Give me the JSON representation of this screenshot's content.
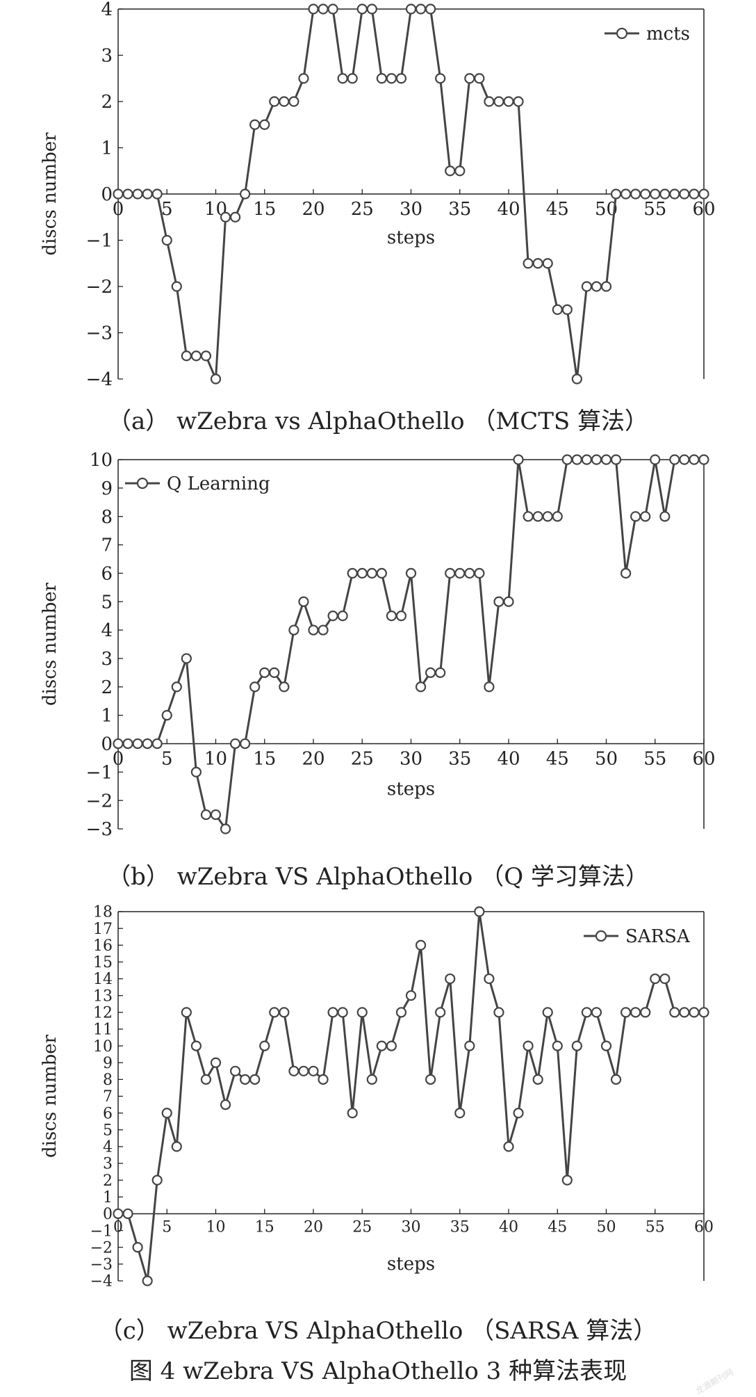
{
  "figure_caption": "图 4    wZebra  VS  AlphaOthello  3 种算法表现",
  "watermark": "龙源期刊网",
  "chart_data": [
    {
      "type": "line",
      "panel_caption": "（a） wZebra  vs  AlphaOthello （MCTS 算法）",
      "xlabel": "steps",
      "ylabel": "discs number",
      "xlim": [
        0,
        60
      ],
      "ylim": [
        -4,
        4
      ],
      "xticks": [
        0,
        5,
        10,
        15,
        20,
        25,
        30,
        35,
        40,
        45,
        50,
        55,
        60
      ],
      "yticks": [
        -4,
        -3,
        -2,
        -1,
        0,
        1,
        2,
        3,
        4
      ],
      "legend_position": "top-right",
      "series": [
        {
          "name": "mcts",
          "x": [
            0,
            1,
            2,
            3,
            4,
            5,
            6,
            7,
            8,
            9,
            10,
            11,
            12,
            13,
            14,
            15,
            16,
            17,
            18,
            19,
            20,
            21,
            22,
            23,
            24,
            25,
            26,
            27,
            28,
            29,
            30,
            31,
            32,
            33,
            34,
            35,
            36,
            37,
            38,
            39,
            40,
            41,
            42,
            43,
            44,
            45,
            46,
            47,
            48,
            49,
            50,
            51,
            52,
            53,
            54,
            55,
            56,
            57,
            58,
            59,
            60
          ],
          "y": [
            0,
            0,
            0,
            0,
            0,
            -1,
            -2,
            -3.5,
            -3.5,
            -3.5,
            -4,
            -0.5,
            -0.5,
            0,
            1.5,
            1.5,
            2,
            2,
            2,
            2.5,
            4,
            4,
            4,
            2.5,
            2.5,
            4,
            4,
            2.5,
            2.5,
            2.5,
            4,
            4,
            4,
            2.5,
            0.5,
            0.5,
            2.5,
            2.5,
            2,
            2,
            2,
            2,
            -1.5,
            -1.5,
            -1.5,
            -2.5,
            -2.5,
            -4,
            -2,
            -2,
            -2,
            0,
            0,
            0,
            0,
            0,
            0,
            0,
            0,
            0,
            0
          ]
        }
      ]
    },
    {
      "type": "line",
      "panel_caption": "（b） wZebra  VS  AlphaOthello （Q 学习算法）",
      "xlabel": "steps",
      "ylabel": "discs number",
      "xlim": [
        0,
        60
      ],
      "ylim": [
        -3,
        10
      ],
      "xticks": [
        0,
        5,
        10,
        15,
        20,
        25,
        30,
        35,
        40,
        45,
        50,
        55,
        60
      ],
      "yticks": [
        -3,
        -2,
        -1,
        0,
        1,
        2,
        3,
        4,
        5,
        6,
        7,
        8,
        9,
        10
      ],
      "legend_position": "top-left",
      "series": [
        {
          "name": "Q Learning",
          "x": [
            0,
            1,
            2,
            3,
            4,
            5,
            6,
            7,
            8,
            9,
            10,
            11,
            12,
            13,
            14,
            15,
            16,
            17,
            18,
            19,
            20,
            21,
            22,
            23,
            24,
            25,
            26,
            27,
            28,
            29,
            30,
            31,
            32,
            33,
            34,
            35,
            36,
            37,
            38,
            39,
            40,
            41,
            42,
            43,
            44,
            45,
            46,
            47,
            48,
            49,
            50,
            51,
            52,
            53,
            54,
            55,
            56,
            57,
            58,
            59,
            60
          ],
          "y": [
            0,
            0,
            0,
            0,
            0,
            1,
            2,
            3,
            -1,
            -2.5,
            -2.5,
            -3,
            0,
            0,
            2,
            2.5,
            2.5,
            2,
            4,
            5,
            4,
            4,
            4.5,
            4.5,
            6,
            6,
            6,
            6,
            4.5,
            4.5,
            6,
            2,
            2.5,
            2.5,
            6,
            6,
            6,
            6,
            2,
            5,
            5,
            10,
            8,
            8,
            8,
            8,
            10,
            10,
            10,
            10,
            10,
            10,
            6,
            8,
            8,
            10,
            8,
            10,
            10,
            10,
            10
          ]
        }
      ]
    },
    {
      "type": "line",
      "panel_caption": "（c） wZebra  VS  AlphaOthello （SARSA 算法）",
      "xlabel": "steps",
      "ylabel": "discs number",
      "xlim": [
        0,
        60
      ],
      "ylim": [
        -4,
        18
      ],
      "xticks": [
        0,
        5,
        10,
        15,
        20,
        25,
        30,
        35,
        40,
        45,
        50,
        55,
        60
      ],
      "yticks": [
        -4,
        -3,
        -2,
        -1,
        0,
        1,
        2,
        3,
        4,
        5,
        6,
        7,
        8,
        9,
        10,
        11,
        12,
        13,
        14,
        15,
        16,
        17,
        18
      ],
      "legend_position": "top-right",
      "series": [
        {
          "name": "SARSA",
          "x": [
            0,
            1,
            2,
            3,
            4,
            5,
            6,
            7,
            8,
            9,
            10,
            11,
            12,
            13,
            14,
            15,
            16,
            17,
            18,
            19,
            20,
            21,
            22,
            23,
            24,
            25,
            26,
            27,
            28,
            29,
            30,
            31,
            32,
            33,
            34,
            35,
            36,
            37,
            38,
            39,
            40,
            41,
            42,
            43,
            44,
            45,
            46,
            47,
            48,
            49,
            50,
            51,
            52,
            53,
            54,
            55,
            56,
            57,
            58,
            59,
            60
          ],
          "y": [
            0,
            0,
            -2,
            -4,
            2,
            6,
            4,
            12,
            10,
            8,
            9,
            6.5,
            8.5,
            8,
            8,
            10,
            12,
            12,
            8.5,
            8.5,
            8.5,
            8,
            12,
            12,
            6,
            12,
            8,
            10,
            10,
            12,
            13,
            16,
            8,
            12,
            14,
            6,
            10,
            18,
            14,
            12,
            4,
            6,
            10,
            8,
            12,
            10,
            2,
            10,
            12,
            12,
            10,
            8,
            12,
            12,
            12,
            14,
            14,
            12,
            12,
            12,
            12
          ]
        }
      ]
    }
  ]
}
